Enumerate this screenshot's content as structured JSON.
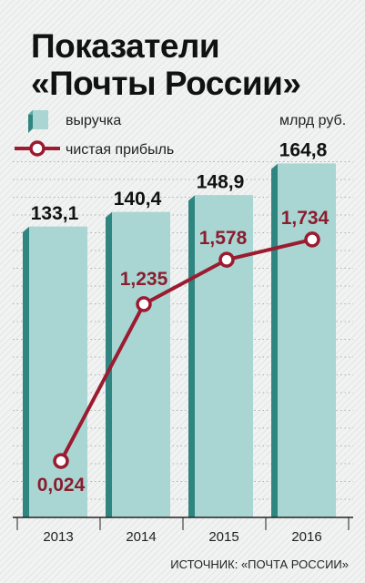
{
  "chart_data": {
    "type": "bar",
    "title": "Показатели «Почты России»",
    "title_lines": [
      "Показатели",
      "«Почты России»"
    ],
    "unit": "млрд руб.",
    "categories": [
      "2013",
      "2014",
      "2015",
      "2016"
    ],
    "series": [
      {
        "name": "выручка",
        "kind": "bar",
        "values": [
          133.1,
          140.4,
          148.9,
          164.8
        ],
        "labels": [
          "133,1",
          "140,4",
          "148,9",
          "164,8"
        ]
      },
      {
        "name": "чистая прибыль",
        "kind": "line",
        "values": [
          0.024,
          1.235,
          1.578,
          1.734
        ],
        "labels": [
          "0,024",
          "1,235",
          "1,578",
          "1,734"
        ]
      }
    ],
    "source": "ИСТОЧНИК: «ПОЧТА РОССИИ»",
    "legend_position": "top-left",
    "grid": "horizontal dotted",
    "colors": {
      "bar_front": "#a9d6d2",
      "bar_side": "#2f8580",
      "bar_top": "#5fa9a3",
      "line": "#9b1b30",
      "line_label": "#8a1d2e"
    }
  }
}
